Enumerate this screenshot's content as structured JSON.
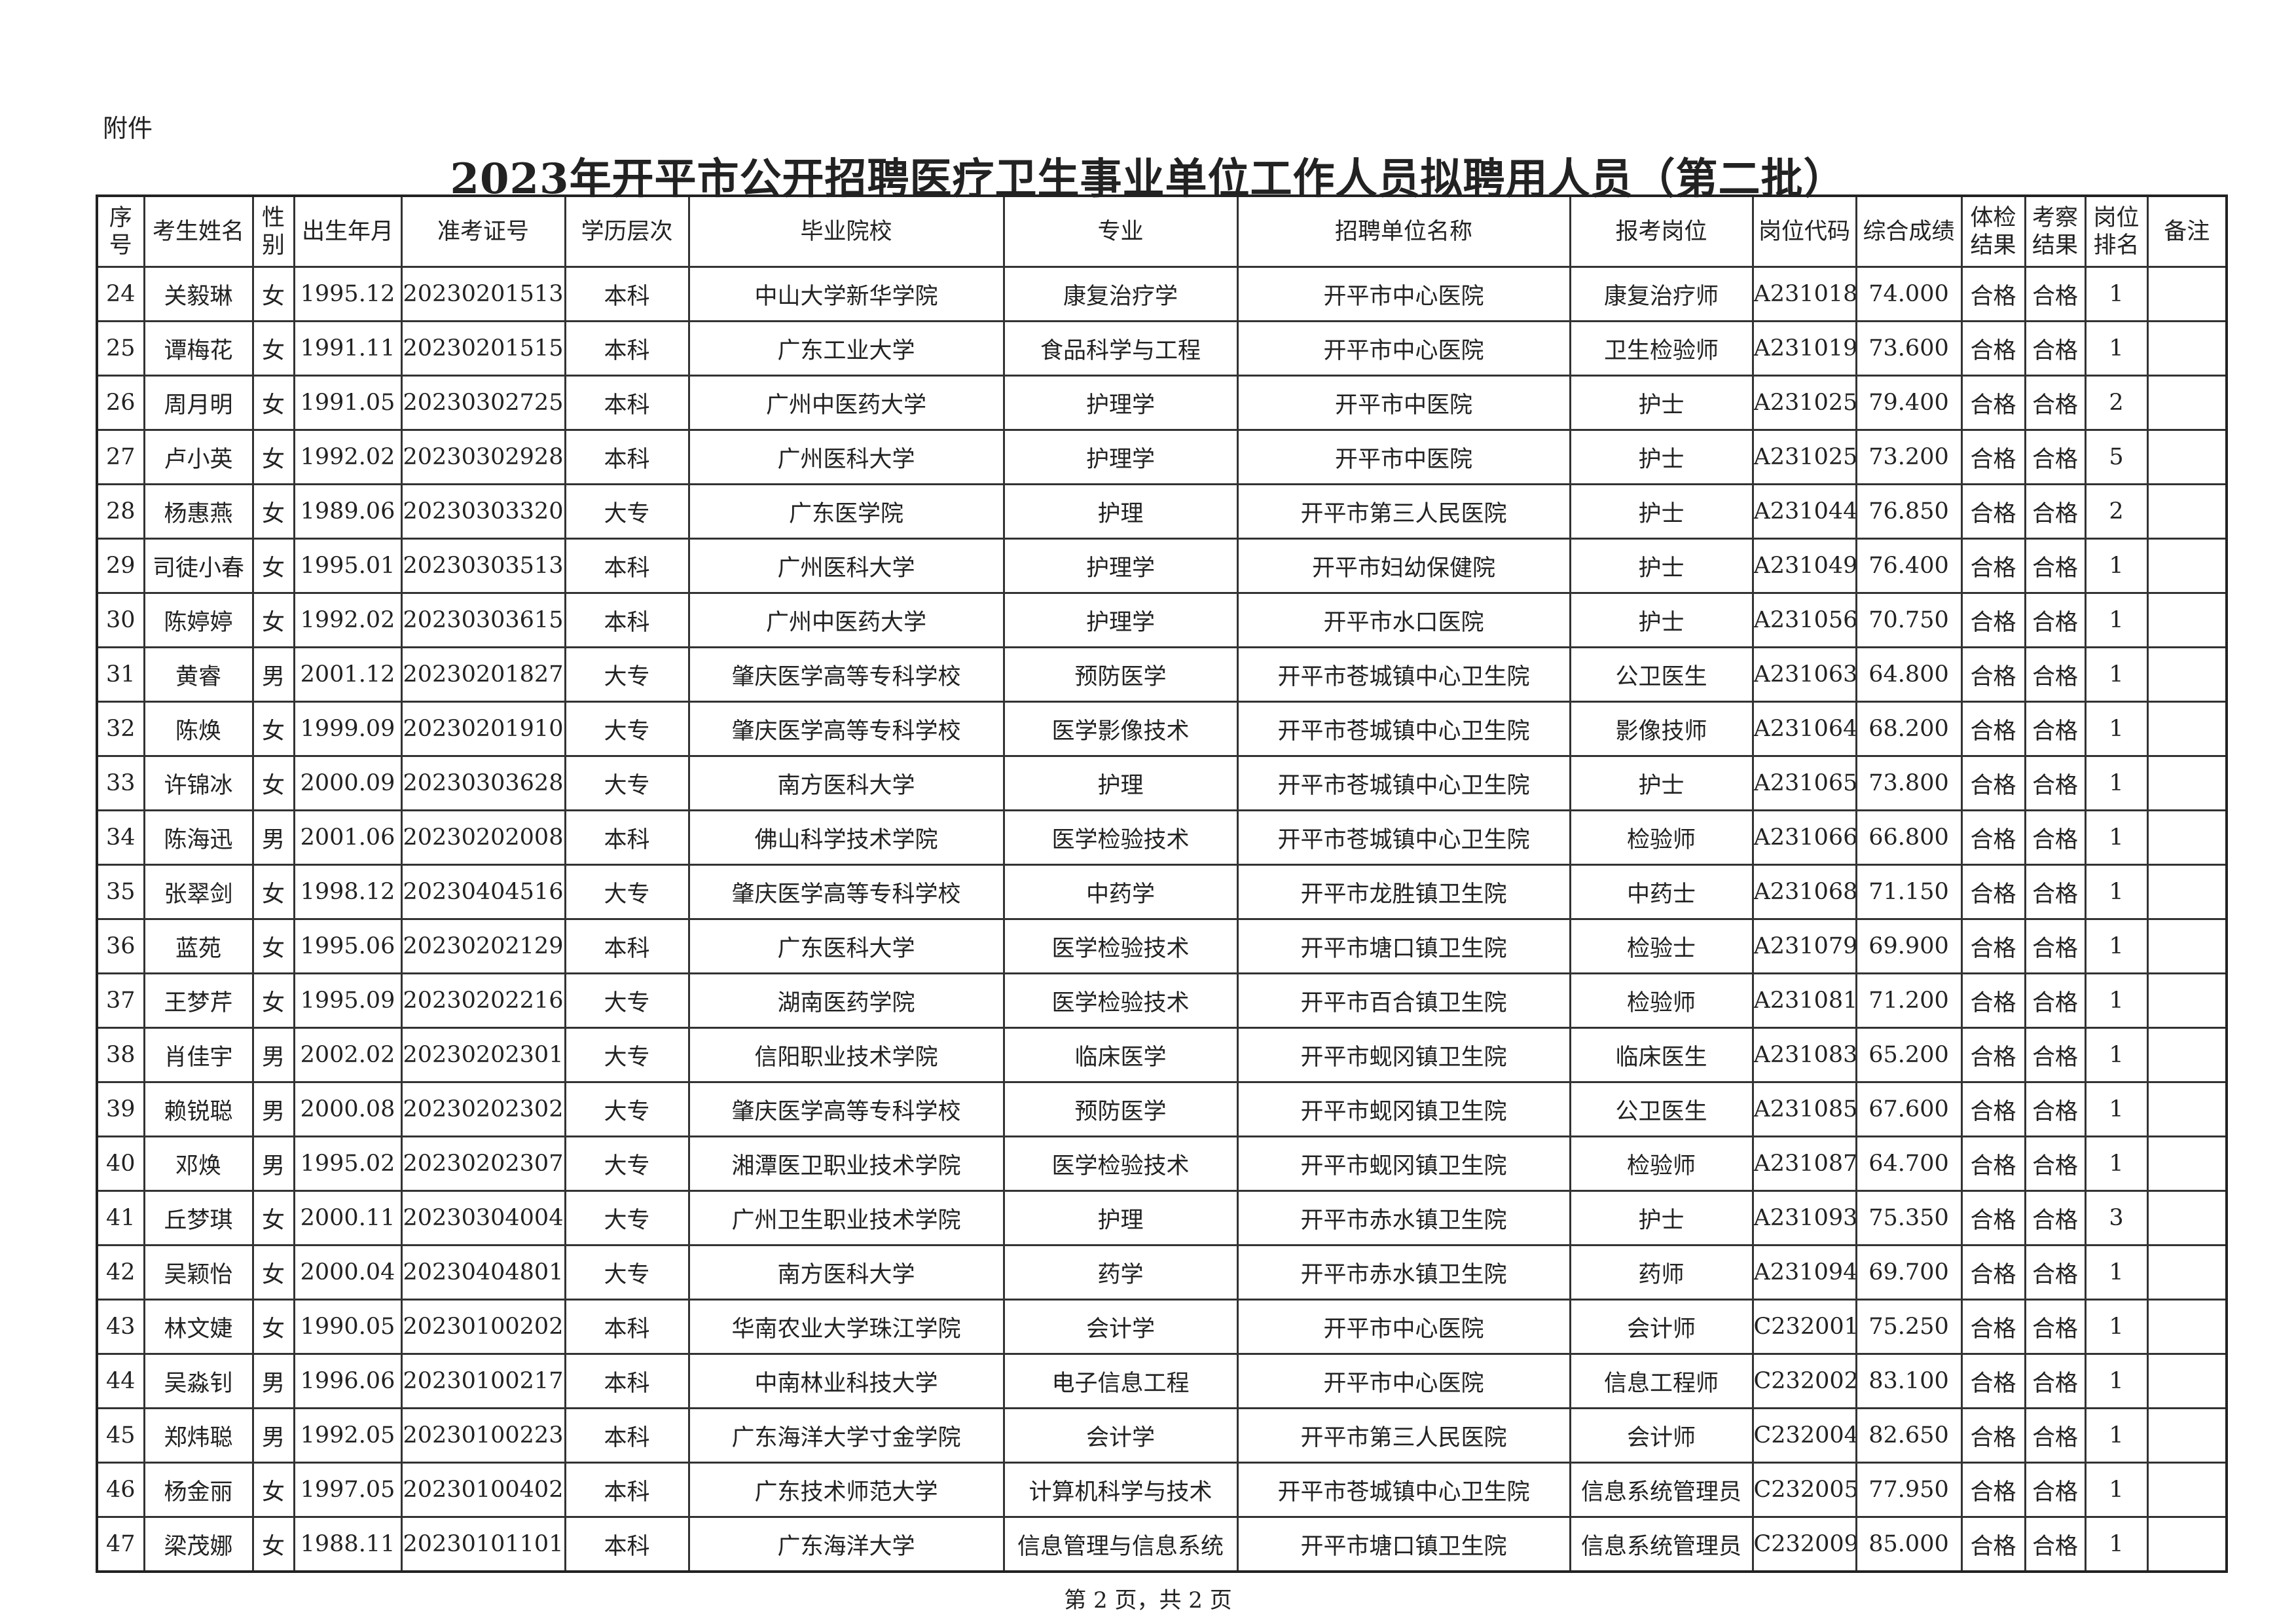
{
  "attachment_label": "附件",
  "title": "2023年开平市公开招聘医疗卫生事业单位工作人员拟聘用人员（第二批）",
  "headers": [
    "序号",
    "考生姓名",
    "性别",
    "出生年月",
    "准考证号",
    "学历层次",
    "毕业院校",
    "专业",
    "招聘单位名称",
    "报考岗位",
    "岗位代码",
    "综合成绩",
    "体检结果",
    "考察结果",
    "岗位排名",
    "备注"
  ],
  "rows": [
    [
      "24",
      "关毅琳",
      "女",
      "1995.12",
      "20230201513",
      "本科",
      "中山大学新华学院",
      "康复治疗学",
      "开平市中心医院",
      "康复治疗师",
      "A231018",
      "74.000",
      "合格",
      "合格",
      "1",
      ""
    ],
    [
      "25",
      "谭梅花",
      "女",
      "1991.11",
      "20230201515",
      "本科",
      "广东工业大学",
      "食品科学与工程",
      "开平市中心医院",
      "卫生检验师",
      "A231019",
      "73.600",
      "合格",
      "合格",
      "1",
      ""
    ],
    [
      "26",
      "周月明",
      "女",
      "1991.05",
      "20230302725",
      "本科",
      "广州中医药大学",
      "护理学",
      "开平市中医院",
      "护士",
      "A231025",
      "79.400",
      "合格",
      "合格",
      "2",
      ""
    ],
    [
      "27",
      "卢小英",
      "女",
      "1992.02",
      "20230302928",
      "本科",
      "广州医科大学",
      "护理学",
      "开平市中医院",
      "护士",
      "A231025",
      "73.200",
      "合格",
      "合格",
      "5",
      ""
    ],
    [
      "28",
      "杨惠燕",
      "女",
      "1989.06",
      "20230303320",
      "大专",
      "广东医学院",
      "护理",
      "开平市第三人民医院",
      "护士",
      "A231044",
      "76.850",
      "合格",
      "合格",
      "2",
      ""
    ],
    [
      "29",
      "司徒小春",
      "女",
      "1995.01",
      "20230303513",
      "本科",
      "广州医科大学",
      "护理学",
      "开平市妇幼保健院",
      "护士",
      "A231049",
      "76.400",
      "合格",
      "合格",
      "1",
      ""
    ],
    [
      "30",
      "陈婷婷",
      "女",
      "1992.02",
      "20230303615",
      "本科",
      "广州中医药大学",
      "护理学",
      "开平市水口医院",
      "护士",
      "A231056",
      "70.750",
      "合格",
      "合格",
      "1",
      ""
    ],
    [
      "31",
      "黄睿",
      "男",
      "2001.12",
      "20230201827",
      "大专",
      "肇庆医学高等专科学校",
      "预防医学",
      "开平市苍城镇中心卫生院",
      "公卫医生",
      "A231063",
      "64.800",
      "合格",
      "合格",
      "1",
      ""
    ],
    [
      "32",
      "陈焕",
      "女",
      "1999.09",
      "20230201910",
      "大专",
      "肇庆医学高等专科学校",
      "医学影像技术",
      "开平市苍城镇中心卫生院",
      "影像技师",
      "A231064",
      "68.200",
      "合格",
      "合格",
      "1",
      ""
    ],
    [
      "33",
      "许锦冰",
      "女",
      "2000.09",
      "20230303628",
      "大专",
      "南方医科大学",
      "护理",
      "开平市苍城镇中心卫生院",
      "护士",
      "A231065",
      "73.800",
      "合格",
      "合格",
      "1",
      ""
    ],
    [
      "34",
      "陈海迅",
      "男",
      "2001.06",
      "20230202008",
      "本科",
      "佛山科学技术学院",
      "医学检验技术",
      "开平市苍城镇中心卫生院",
      "检验师",
      "A231066",
      "66.800",
      "合格",
      "合格",
      "1",
      ""
    ],
    [
      "35",
      "张翠剑",
      "女",
      "1998.12",
      "20230404516",
      "大专",
      "肇庆医学高等专科学校",
      "中药学",
      "开平市龙胜镇卫生院",
      "中药士",
      "A231068",
      "71.150",
      "合格",
      "合格",
      "1",
      ""
    ],
    [
      "36",
      "蓝苑",
      "女",
      "1995.06",
      "20230202129",
      "本科",
      "广东医科大学",
      "医学检验技术",
      "开平市塘口镇卫生院",
      "检验士",
      "A231079",
      "69.900",
      "合格",
      "合格",
      "1",
      ""
    ],
    [
      "37",
      "王梦芹",
      "女",
      "1995.09",
      "20230202216",
      "大专",
      "湖南医药学院",
      "医学检验技术",
      "开平市百合镇卫生院",
      "检验师",
      "A231081",
      "71.200",
      "合格",
      "合格",
      "1",
      ""
    ],
    [
      "38",
      "肖佳宇",
      "男",
      "2002.02",
      "20230202301",
      "大专",
      "信阳职业技术学院",
      "临床医学",
      "开平市蚬冈镇卫生院",
      "临床医生",
      "A231083",
      "65.200",
      "合格",
      "合格",
      "1",
      ""
    ],
    [
      "39",
      "赖锐聪",
      "男",
      "2000.08",
      "20230202302",
      "大专",
      "肇庆医学高等专科学校",
      "预防医学",
      "开平市蚬冈镇卫生院",
      "公卫医生",
      "A231085",
      "67.600",
      "合格",
      "合格",
      "1",
      ""
    ],
    [
      "40",
      "邓焕",
      "男",
      "1995.02",
      "20230202307",
      "大专",
      "湘潭医卫职业技术学院",
      "医学检验技术",
      "开平市蚬冈镇卫生院",
      "检验师",
      "A231087",
      "64.700",
      "合格",
      "合格",
      "1",
      ""
    ],
    [
      "41",
      "丘梦琪",
      "女",
      "2000.11",
      "20230304004",
      "大专",
      "广州卫生职业技术学院",
      "护理",
      "开平市赤水镇卫生院",
      "护士",
      "A231093",
      "75.350",
      "合格",
      "合格",
      "3",
      ""
    ],
    [
      "42",
      "吴颖怡",
      "女",
      "2000.04",
      "20230404801",
      "大专",
      "南方医科大学",
      "药学",
      "开平市赤水镇卫生院",
      "药师",
      "A231094",
      "69.700",
      "合格",
      "合格",
      "1",
      ""
    ],
    [
      "43",
      "林文婕",
      "女",
      "1990.05",
      "20230100202",
      "本科",
      "华南农业大学珠江学院",
      "会计学",
      "开平市中心医院",
      "会计师",
      "C232001",
      "75.250",
      "合格",
      "合格",
      "1",
      ""
    ],
    [
      "44",
      "吴淼钊",
      "男",
      "1996.06",
      "20230100217",
      "本科",
      "中南林业科技大学",
      "电子信息工程",
      "开平市中心医院",
      "信息工程师",
      "C232002",
      "83.100",
      "合格",
      "合格",
      "1",
      ""
    ],
    [
      "45",
      "郑炜聪",
      "男",
      "1992.05",
      "20230100223",
      "本科",
      "广东海洋大学寸金学院",
      "会计学",
      "开平市第三人民医院",
      "会计师",
      "C232004",
      "82.650",
      "合格",
      "合格",
      "1",
      ""
    ],
    [
      "46",
      "杨金丽",
      "女",
      "1997.05",
      "20230100402",
      "本科",
      "广东技术师范大学",
      "计算机科学与技术",
      "开平市苍城镇中心卫生院",
      "信息系统管理员",
      "C232005",
      "77.950",
      "合格",
      "合格",
      "1",
      ""
    ],
    [
      "47",
      "梁茂娜",
      "女",
      "1988.11",
      "20230101101",
      "本科",
      "广东海洋大学",
      "信息管理与信息系统",
      "开平市塘口镇卫生院",
      "信息系统管理员",
      "C232009",
      "85.000",
      "合格",
      "合格",
      "1",
      ""
    ]
  ],
  "footer": "第 2 页，共 2 页"
}
